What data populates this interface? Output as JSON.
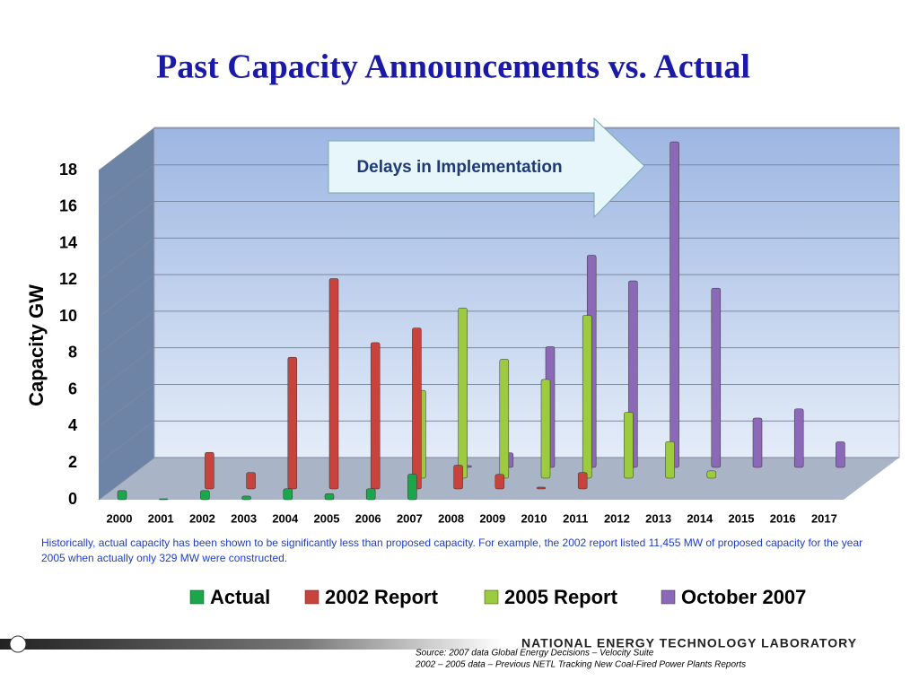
{
  "chart_data": {
    "type": "bar",
    "title": "Past Capacity Announcements vs. Actual",
    "y_label": "Capacity GW",
    "categories": [
      "2000",
      "2001",
      "2002",
      "2003",
      "2004",
      "2005",
      "2006",
      "2007",
      "2008",
      "2009",
      "2010",
      "2011",
      "2012",
      "2013",
      "2014",
      "2015",
      "2016",
      "2017"
    ],
    "series": [
      {
        "name": "Actual",
        "color": "#1aa64a",
        "values": [
          0.5,
          0.05,
          0.5,
          0.2,
          0.6,
          0.33,
          0.6,
          1.4,
          null,
          null,
          null,
          null,
          null,
          null,
          null,
          null,
          null,
          null
        ]
      },
      {
        "name": "2002 Report",
        "color": "#c9433d",
        "values": [
          null,
          null,
          2.0,
          0.9,
          7.2,
          11.5,
          8.0,
          8.8,
          1.3,
          0.8,
          0.1,
          0.9,
          null,
          null,
          null,
          null,
          null,
          null
        ]
      },
      {
        "name": "2005 Report",
        "color": "#9ccb3f",
        "values": [
          null,
          null,
          null,
          null,
          null,
          null,
          null,
          4.8,
          9.3,
          6.5,
          5.4,
          8.9,
          3.6,
          2.0,
          0.4,
          null,
          null,
          null
        ]
      },
      {
        "name": "October 2007",
        "color": "#8b68b8",
        "values": [
          null,
          null,
          null,
          null,
          null,
          null,
          null,
          null,
          0.1,
          0.8,
          6.6,
          11.6,
          10.2,
          17.8,
          9.8,
          2.7,
          3.2,
          1.4
        ]
      }
    ],
    "ylim": [
      0,
      18
    ],
    "yticks": [
      0,
      2,
      4,
      6,
      8,
      10,
      12,
      14,
      16,
      18
    ],
    "grid": true,
    "annotation": "Delays in Implementation"
  },
  "note": "Historically, actual capacity has been shown to be significantly less than proposed capacity.  For example, the 2002 report listed 11,455 MW of proposed capacity for the year 2005 when actually only 329 MW were constructed.",
  "footer": {
    "logo": "NATIONAL ENERGY TECHNOLOGY LABORATORY",
    "source_1": "Source: 2007 data Global Energy Decisions – Velocity Suite",
    "source_2": "2002 – 2005 data – Previous NETL Tracking New Coal-Fired Power Plants Reports"
  }
}
